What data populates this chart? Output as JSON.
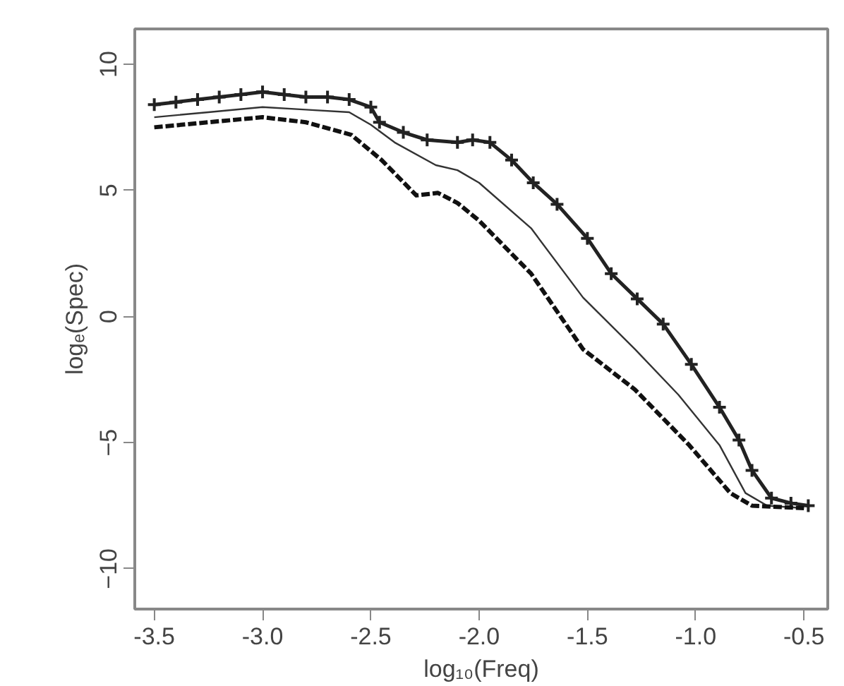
{
  "chart_data": {
    "type": "line",
    "xlabel": "log₁₀(Freq)",
    "ylabel": "logₑ(Spec)",
    "xlim": [
      -3.59,
      -0.39
    ],
    "ylim": [
      -11.6,
      11.4
    ],
    "xticks": [
      {
        "value": -3.5,
        "label": "-3.5"
      },
      {
        "value": -3.0,
        "label": "-3.0"
      },
      {
        "value": -2.5,
        "label": "-2.5"
      },
      {
        "value": -2.0,
        "label": "-2.0"
      },
      {
        "value": -1.5,
        "label": "-1.5"
      },
      {
        "value": -1.0,
        "label": "-1.0"
      },
      {
        "value": -0.5,
        "label": "-0.5"
      }
    ],
    "yticks": [
      -10,
      -5,
      0,
      5,
      10
    ],
    "grid": false,
    "series": [
      {
        "color": "#222222",
        "marker": "cross",
        "line_style": "solid",
        "x": [
          -3.5,
          -3.4,
          -3.3,
          -3.2,
          -3.1,
          -3.0,
          -2.9,
          -2.8,
          -2.7,
          -2.6,
          -2.5,
          -2.46,
          -2.35,
          -2.24,
          -2.1,
          -2.03,
          -1.95,
          -1.85,
          -1.75,
          -1.64,
          -1.5,
          -1.39,
          -1.27,
          -1.15,
          -1.02,
          -0.89,
          -0.8,
          -0.74,
          -0.65,
          -0.56,
          -0.48
        ],
        "values": [
          8.4,
          8.5,
          8.6,
          8.7,
          8.8,
          8.9,
          8.8,
          8.7,
          8.7,
          8.6,
          8.3,
          7.7,
          7.3,
          7.0,
          6.9,
          7.0,
          6.9,
          6.2,
          5.3,
          4.45,
          3.1,
          1.7,
          0.7,
          -0.3,
          -1.9,
          -3.6,
          -4.9,
          -6.1,
          -7.2,
          -7.4,
          -7.5
        ]
      },
      {
        "color": "#333333",
        "marker": "none",
        "line_style": "solid",
        "x": [
          -3.5,
          -3.25,
          -3.0,
          -2.8,
          -2.6,
          -2.5,
          -2.39,
          -2.2,
          -2.1,
          -2.0,
          -1.76,
          -1.52,
          -1.28,
          -1.08,
          -0.89,
          -0.77,
          -0.67,
          -0.5
        ],
        "values": [
          7.9,
          8.1,
          8.3,
          8.2,
          8.1,
          7.6,
          6.9,
          6.0,
          5.8,
          5.3,
          3.5,
          0.75,
          -1.3,
          -3.1,
          -5.1,
          -7.0,
          -7.5,
          -7.6
        ]
      },
      {
        "color": "#111111",
        "marker": "none",
        "line_style": "dashed",
        "x": [
          -3.5,
          -3.25,
          -3.0,
          -2.8,
          -2.59,
          -2.45,
          -2.29,
          -2.19,
          -2.1,
          -2.0,
          -1.76,
          -1.52,
          -1.28,
          -1.03,
          -0.84,
          -0.74,
          -0.5
        ],
        "values": [
          7.5,
          7.7,
          7.9,
          7.7,
          7.2,
          6.2,
          4.8,
          4.9,
          4.5,
          3.8,
          1.7,
          -1.3,
          -2.9,
          -5.1,
          -7.0,
          -7.5,
          -7.6
        ]
      }
    ]
  }
}
